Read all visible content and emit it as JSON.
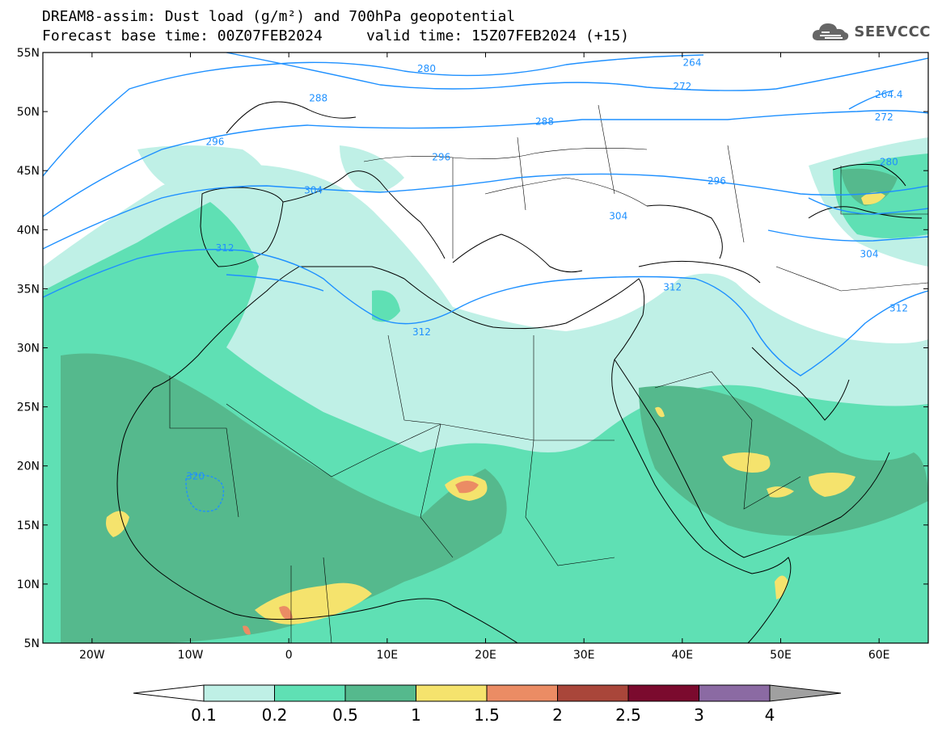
{
  "title": {
    "line1": "DREAM8-assim: Dust load (g/m²) and 700hPa geopotential",
    "line2_left": "Forecast base time: 00Z07FEB2024",
    "line2_right": "valid time: 15Z07FEB2024 (+15)"
  },
  "logo": {
    "text": "SEEVCCC",
    "icon": "cloud-icon"
  },
  "map": {
    "lat_labels": [
      "55N",
      "50N",
      "45N",
      "40N",
      "35N",
      "30N",
      "25N",
      "20N",
      "15N",
      "10N",
      "5N"
    ],
    "lat_values": [
      55,
      50,
      45,
      40,
      35,
      30,
      25,
      20,
      15,
      10,
      5
    ],
    "lon_labels": [
      "20W",
      "10W",
      "0",
      "10E",
      "20E",
      "30E",
      "40E",
      "50E",
      "60E"
    ],
    "lon_values": [
      -20,
      -10,
      0,
      10,
      20,
      30,
      40,
      50,
      60
    ],
    "extent": {
      "lon_min": -25,
      "lon_max": 65,
      "lat_min": 5,
      "lat_max": 55
    },
    "contour_color": "#1e90ff",
    "contour_labels": [
      {
        "text": "264",
        "lon": 41,
        "lat": 54
      },
      {
        "text": "280",
        "lon": 14,
        "lat": 53.5
      },
      {
        "text": "272",
        "lon": 40,
        "lat": 52
      },
      {
        "text": "264.4",
        "lon": 61,
        "lat": 51.3
      },
      {
        "text": "288",
        "lon": 3,
        "lat": 51
      },
      {
        "text": "272",
        "lon": 60.5,
        "lat": 49.4
      },
      {
        "text": "288",
        "lon": 26,
        "lat": 49
      },
      {
        "text": "296",
        "lon": -7.5,
        "lat": 47.3
      },
      {
        "text": "296",
        "lon": 15.5,
        "lat": 46
      },
      {
        "text": "280",
        "lon": 61,
        "lat": 45.6
      },
      {
        "text": "296",
        "lon": 43.5,
        "lat": 44
      },
      {
        "text": "304",
        "lon": 2.5,
        "lat": 43.2
      },
      {
        "text": "304",
        "lon": 33.5,
        "lat": 41
      },
      {
        "text": "312",
        "lon": -6.5,
        "lat": 38.3
      },
      {
        "text": "304",
        "lon": 59,
        "lat": 37.8
      },
      {
        "text": "312",
        "lon": 39,
        "lat": 35
      },
      {
        "text": "312",
        "lon": 62,
        "lat": 33.2
      },
      {
        "text": "312",
        "lon": 13.5,
        "lat": 31.2
      },
      {
        "text": "320",
        "lon": -9.5,
        "lat": 19
      }
    ],
    "dust_colors": [
      "#bff0e6",
      "#5fe0b4",
      "#55b98d",
      "#f5e36d",
      "#eb8c64",
      "#a9463a",
      "#7b0a2e",
      "#8b6aa3"
    ]
  },
  "colorbar": {
    "labels": [
      "0.1",
      "0.2",
      "0.5",
      "1",
      "1.5",
      "2",
      "2.5",
      "3",
      "4"
    ],
    "colors": [
      "#bff0e6",
      "#5fe0b4",
      "#55b98d",
      "#f5e36d",
      "#eb8c64",
      "#a9463a",
      "#7b0a2e",
      "#8b6aa3"
    ],
    "under_color": "#ffffff",
    "over_color": "#a0a0a0"
  }
}
